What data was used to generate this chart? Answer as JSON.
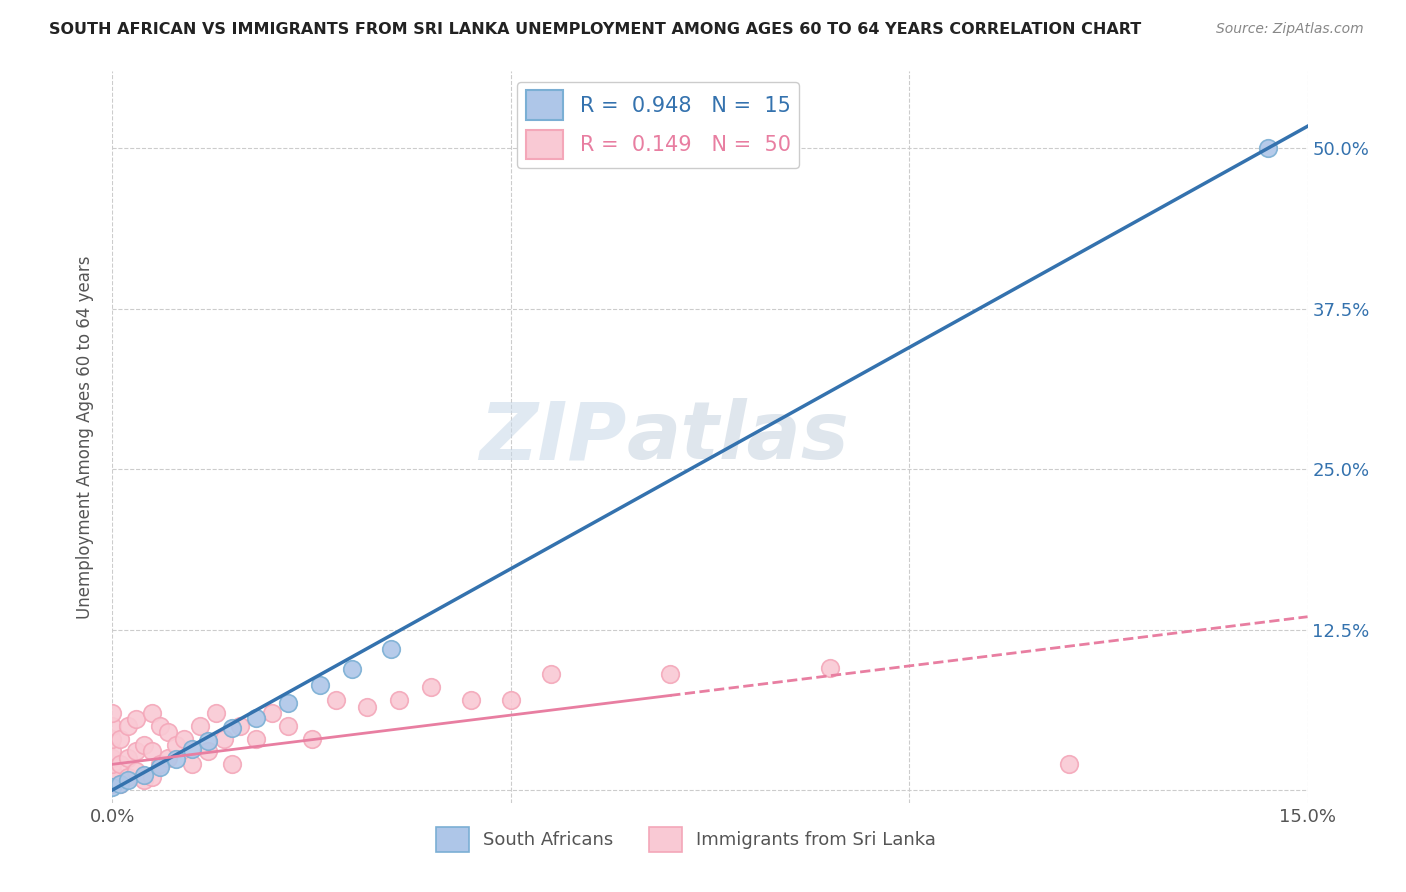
{
  "title": "SOUTH AFRICAN VS IMMIGRANTS FROM SRI LANKA UNEMPLOYMENT AMONG AGES 60 TO 64 YEARS CORRELATION CHART",
  "source": "Source: ZipAtlas.com",
  "ylabel": "Unemployment Among Ages 60 to 64 years",
  "xlim": [
    0.0,
    0.15
  ],
  "ylim": [
    -0.01,
    0.56
  ],
  "xticks": [
    0.0,
    0.05,
    0.1,
    0.15
  ],
  "xticklabels": [
    "0.0%",
    "",
    "",
    "15.0%"
  ],
  "yticks": [
    0.0,
    0.125,
    0.25,
    0.375,
    0.5
  ],
  "right_yticklabels": [
    "",
    "12.5%",
    "25.0%",
    "37.5%",
    "50.0%"
  ],
  "sa_color": "#7bafd4",
  "sa_fill": "#aec6e8",
  "sri_color": "#f4a7b9",
  "sri_fill": "#f9c9d4",
  "line_sa_color": "#3472ae",
  "line_sri_color": "#e87ea1",
  "R_sa": 0.948,
  "N_sa": 15,
  "R_sri": 0.149,
  "N_sri": 50,
  "watermark": "ZIPatlas",
  "background_color": "#ffffff",
  "grid_color": "#cccccc",
  "sa_scatter_x": [
    0.0,
    0.001,
    0.002,
    0.004,
    0.006,
    0.008,
    0.01,
    0.012,
    0.015,
    0.018,
    0.022,
    0.026,
    0.03,
    0.035,
    0.145
  ],
  "sa_scatter_y": [
    0.002,
    0.005,
    0.008,
    0.012,
    0.018,
    0.024,
    0.032,
    0.038,
    0.048,
    0.056,
    0.068,
    0.082,
    0.094,
    0.11,
    0.5
  ],
  "sri_scatter_x": [
    0.0,
    0.0,
    0.0,
    0.0,
    0.0,
    0.0,
    0.0,
    0.0,
    0.0,
    0.001,
    0.001,
    0.001,
    0.002,
    0.002,
    0.002,
    0.003,
    0.003,
    0.003,
    0.004,
    0.004,
    0.005,
    0.005,
    0.005,
    0.006,
    0.006,
    0.007,
    0.007,
    0.008,
    0.009,
    0.01,
    0.011,
    0.012,
    0.013,
    0.014,
    0.015,
    0.016,
    0.018,
    0.02,
    0.022,
    0.025,
    0.028,
    0.032,
    0.036,
    0.04,
    0.045,
    0.05,
    0.055,
    0.07,
    0.09,
    0.12
  ],
  "sri_scatter_y": [
    0.005,
    0.01,
    0.015,
    0.02,
    0.025,
    0.03,
    0.04,
    0.05,
    0.06,
    0.005,
    0.02,
    0.04,
    0.01,
    0.025,
    0.05,
    0.015,
    0.03,
    0.055,
    0.008,
    0.035,
    0.01,
    0.03,
    0.06,
    0.02,
    0.05,
    0.025,
    0.045,
    0.035,
    0.04,
    0.02,
    0.05,
    0.03,
    0.06,
    0.04,
    0.02,
    0.05,
    0.04,
    0.06,
    0.05,
    0.04,
    0.07,
    0.065,
    0.07,
    0.08,
    0.07,
    0.07,
    0.09,
    0.09,
    0.095,
    0.02
  ],
  "legend_sa_label": "R =  0.948   N =  15",
  "legend_sri_label": "R =  0.149   N =  50",
  "bottom_legend_sa": "South Africans",
  "bottom_legend_sri": "Immigrants from Sri Lanka",
  "sa_line_x0": 0.0,
  "sa_line_y0": 0.0,
  "sa_line_x1": 0.145,
  "sa_line_y1": 0.5,
  "sri_line_x0": 0.0,
  "sri_line_y0": 0.02,
  "sri_line_x1": 0.15,
  "sri_line_y1": 0.135
}
